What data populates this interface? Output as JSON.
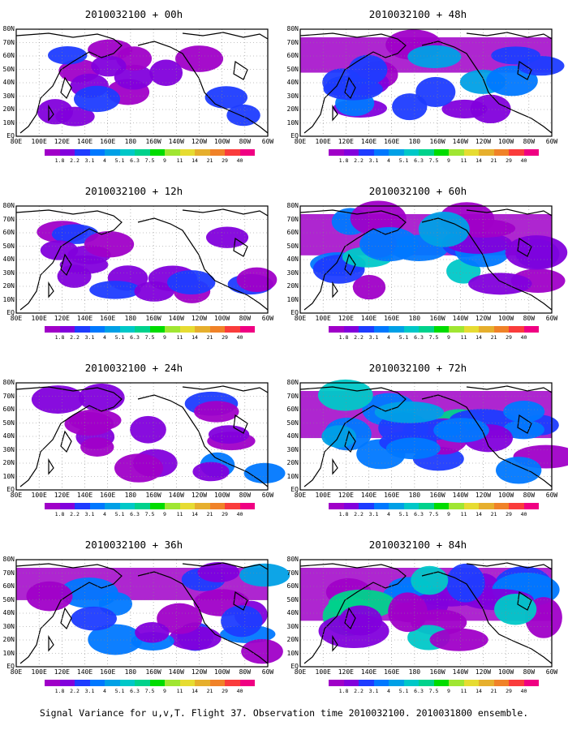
{
  "footer": "Signal Variance for u,v,T. Flight 37. Observation time 2010032100. 2010031800 ensemble.",
  "colors": {
    "ocean": "#ffffff",
    "coast": "#000000",
    "levels": [
      "#a000c8",
      "#8200dc",
      "#1e3cff",
      "#0078ff",
      "#00a0e6",
      "#00c8c8",
      "#00d28c",
      "#00dc00",
      "#a0e632",
      "#e6dc32",
      "#e6af2d",
      "#f08228",
      "#fa3c3c",
      "#f00082"
    ]
  },
  "colorbar": {
    "labels": [
      "1.8",
      "2.2",
      "3.1",
      "4",
      "5.1",
      "6.3",
      "7.5",
      "9",
      "11",
      "14",
      "21",
      "29",
      "40"
    ]
  },
  "axes": {
    "lat_labels": [
      "80N",
      "70N",
      "60N",
      "50N",
      "40N",
      "30N",
      "20N",
      "10N",
      "EQ"
    ],
    "lon_labels": [
      "80E",
      "100E",
      "120E",
      "140E",
      "160E",
      "180",
      "160W",
      "140W",
      "120W",
      "100W",
      "80W",
      "60W"
    ],
    "lat_range": [
      0,
      80
    ],
    "lon_range_east": [
      80,
      300
    ]
  },
  "panels": [
    {
      "title": "2010032100 + 00h",
      "intensity": 0.35
    },
    {
      "title": "2010032100 + 48h",
      "intensity": 0.6
    },
    {
      "title": "2010032100 + 12h",
      "intensity": 0.4
    },
    {
      "title": "2010032100 + 60h",
      "intensity": 0.7
    },
    {
      "title": "2010032100 + 24h",
      "intensity": 0.45
    },
    {
      "title": "2010032100 + 72h",
      "intensity": 0.8
    },
    {
      "title": "2010032100 + 36h",
      "intensity": 0.55
    },
    {
      "title": "2010032100 + 84h",
      "intensity": 0.9
    }
  ]
}
